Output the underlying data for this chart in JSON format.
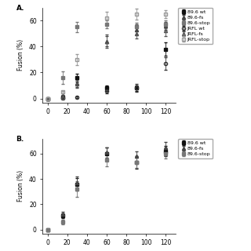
{
  "panel_A": {
    "title": "A.",
    "series": [
      {
        "label": "89.6 wt",
        "marker": "s",
        "fillstyle": "full",
        "color": "#111111",
        "markersize": 3,
        "x": [
          0,
          15,
          30,
          60,
          90,
          120
        ],
        "y": [
          0,
          1,
          16,
          8,
          8,
          38
        ],
        "yerr": [
          0.5,
          1,
          3,
          2,
          2,
          5
        ],
        "sigmoid_p0": [
          55,
          80,
          0.05
        ]
      },
      {
        "label": "89.6-fs",
        "marker": "^",
        "fillstyle": "full",
        "color": "#444444",
        "markersize": 3,
        "x": [
          0,
          15,
          30,
          60,
          90,
          120
        ],
        "y": [
          0,
          2,
          12,
          44,
          53,
          56
        ],
        "yerr": [
          0.5,
          1,
          3,
          4,
          4,
          3
        ],
        "sigmoid_p0": [
          57,
          45,
          0.12
        ]
      },
      {
        "label": "89.6-stop",
        "marker": "s",
        "fillstyle": "full",
        "color": "#777777",
        "markersize": 3,
        "x": [
          0,
          15,
          30,
          60,
          90,
          120
        ],
        "y": [
          0,
          16,
          55,
          57,
          55,
          57
        ],
        "yerr": [
          0.5,
          5,
          4,
          3,
          3,
          3
        ],
        "sigmoid_p0": [
          60,
          20,
          0.25
        ]
      },
      {
        "label": "JRFL wt",
        "marker": "o",
        "fillstyle": "none",
        "color": "#333333",
        "markersize": 3,
        "x": [
          0,
          15,
          30,
          60,
          90,
          120
        ],
        "y": [
          0,
          0.5,
          1,
          6,
          8,
          27
        ],
        "yerr": [
          0.3,
          0.5,
          0.5,
          2,
          3,
          5
        ],
        "sigmoid_p0": [
          55,
          100,
          0.06
        ]
      },
      {
        "label": "JRFL-fs",
        "marker": "^",
        "fillstyle": "none",
        "color": "#555555",
        "markersize": 3,
        "x": [
          0,
          15,
          30,
          60,
          90,
          120
        ],
        "y": [
          0,
          1,
          11,
          44,
          50,
          52
        ],
        "yerr": [
          0.3,
          1,
          3,
          5,
          4,
          4
        ],
        "sigmoid_p0": [
          55,
          48,
          0.12
        ]
      },
      {
        "label": "JRFL-stop",
        "marker": "s",
        "fillstyle": "none",
        "color": "#999999",
        "markersize": 3,
        "x": [
          0,
          15,
          30,
          60,
          90,
          120
        ],
        "y": [
          0,
          5,
          30,
          62,
          65,
          65
        ],
        "yerr": [
          0.3,
          1,
          4,
          5,
          4,
          3
        ],
        "sigmoid_p0": [
          66,
          25,
          0.2
        ]
      }
    ],
    "ylabel": "Fusion (%)",
    "xlim": [
      -5,
      130
    ],
    "ylim": [
      -3,
      70
    ],
    "yticks": [
      0,
      20,
      40,
      60
    ],
    "xticks": [
      0,
      20,
      40,
      60,
      80,
      100,
      120
    ]
  },
  "panel_B": {
    "title": "B.",
    "series": [
      {
        "label": "89.6 wt",
        "marker": "s",
        "fillstyle": "full",
        "color": "#111111",
        "markersize": 3,
        "x": [
          0,
          15,
          30,
          60,
          90,
          120
        ],
        "y": [
          0,
          11,
          36,
          60,
          53,
          62
        ],
        "yerr": [
          0.5,
          2,
          5,
          5,
          5,
          4
        ],
        "sigmoid_p0": [
          63,
          35,
          0.15
        ]
      },
      {
        "label": "89.6-fs",
        "marker": "^",
        "fillstyle": "full",
        "color": "#444444",
        "markersize": 3,
        "x": [
          0,
          15,
          30,
          60,
          90,
          120
        ],
        "y": [
          0,
          12,
          37,
          61,
          58,
          65
        ],
        "yerr": [
          0.5,
          2,
          5,
          4,
          4,
          4
        ],
        "sigmoid_p0": [
          66,
          33,
          0.15
        ]
      },
      {
        "label": "89.6-stop",
        "marker": "s",
        "fillstyle": "full",
        "color": "#777777",
        "markersize": 3,
        "x": [
          0,
          15,
          30,
          60,
          90,
          120
        ],
        "y": [
          0,
          6,
          32,
          55,
          53,
          60
        ],
        "yerr": [
          0.5,
          2,
          6,
          5,
          4,
          4
        ],
        "sigmoid_p0": [
          60,
          38,
          0.15
        ]
      }
    ],
    "ylabel": "Fusion (%)",
    "xlim": [
      -5,
      130
    ],
    "ylim": [
      -3,
      72
    ],
    "yticks": [
      0,
      20,
      40,
      60
    ],
    "xticks": [
      0,
      20,
      40,
      60,
      80,
      100,
      120
    ]
  },
  "figure_bg": "#ffffff",
  "font_size": 5.5,
  "legend_fontsize": 4.5
}
